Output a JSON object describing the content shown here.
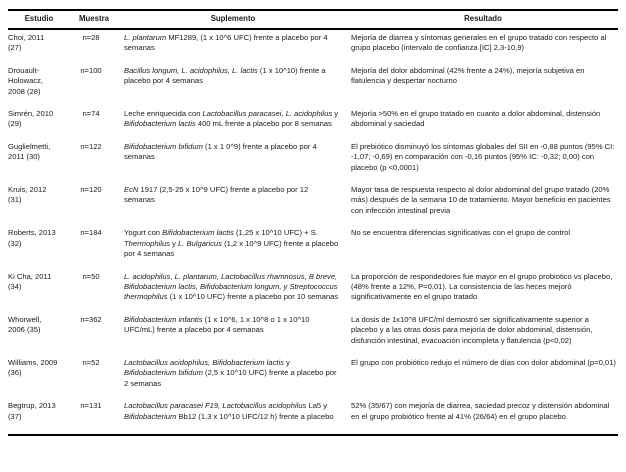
{
  "colors": {
    "text": "#1b1b1b",
    "border": "#000000",
    "background": "#ffffff"
  },
  "table": {
    "headers": [
      "Estudio",
      "Muestra",
      "Suplemento",
      "Resultado"
    ],
    "rows": [
      {
        "estudio": "Choi, 2011\n(27)",
        "muestra": "n=28",
        "suplemento": [
          {
            "t": "L. plantarum",
            "i": true
          },
          {
            "t": " MF1289, (1 x 10^6 UFC) frente a placebo por 4 semanas",
            "i": false
          }
        ],
        "resultado": "Mejoría de diarrea y síntomas generales en el grupo tratado con respecto al grupo placebo (intervalo de confianza [IC] 2,3-10,9)"
      },
      {
        "estudio": "Drouault-\nHolowacz,\n2008 (28)",
        "muestra": "n=100",
        "suplemento": [
          {
            "t": "Bacillus longum, L. acidophilus, L. lactis",
            "i": true
          },
          {
            "t": " (1 x 10^10) frente a placebo por 4 semanas",
            "i": false
          }
        ],
        "resultado": "Mejoría del dolor abdominal (42% frente a 24%), mejoría subjetiva en flatulencia y despertar nocturno"
      },
      {
        "estudio": "Simrén, 2010\n(29)",
        "muestra": "n=74",
        "suplemento": [
          {
            "t": "Leche enriquecida con ",
            "i": false
          },
          {
            "t": "Lactobacillus paracasei, L. acidophilus",
            "i": true
          },
          {
            "t": " y ",
            "i": false
          },
          {
            "t": "Bifidobacterium lactis",
            "i": true
          },
          {
            "t": " 400 mL frente a placebo por 8 semanas",
            "i": false
          }
        ],
        "resultado": "Mejoría >50% en el grupo tratado en cuanto a dolor abdominal, distensión abdominal y saciedad"
      },
      {
        "estudio": "Guglielmetti,\n2011 (30)",
        "muestra": "n=122",
        "suplemento": [
          {
            "t": "Bifidobacterium bifidum",
            "i": true
          },
          {
            "t": " (1 x 1 0^9) frente a placebo por 4 semanas",
            "i": false
          }
        ],
        "resultado": "El prebiótico disminuyó los síntomas globales del SII en -0,88 puntos (95% CI: -1,07; -0,69) en comparación con -0,16 puntos (95% IC: -0,32; 0,00) con placebo (p <0,0001)"
      },
      {
        "estudio": "Kruis, 2012\n(31)",
        "muestra": "n=120",
        "suplemento": [
          {
            "t": "EcN",
            "i": true
          },
          {
            "t": " 1917 (2,5-25 x 10^9 UFC) frente a placebo por 12 semanas",
            "i": false
          }
        ],
        "resultado": "Mayor tasa de respuesta respecto al dolor abdominal del grupo tratado (20% más) después de la semana 10 de tratamiento. Mayor beneficio en pacientes con infección intestinal previa"
      },
      {
        "estudio": "Roberts, 2013\n(32)",
        "muestra": "n=184",
        "suplemento": [
          {
            "t": "Yogurt con ",
            "i": false
          },
          {
            "t": "Bifidobacterium lactis",
            "i": true
          },
          {
            "t": " (1,25 x 10^10 UFC) + S. ",
            "i": false
          },
          {
            "t": "Thermophilus",
            "i": true
          },
          {
            "t": " y ",
            "i": false
          },
          {
            "t": "L. Bulgaricus",
            "i": true
          },
          {
            "t": " (1,2 x 10^9 UFC) frente a placebo por 4 semanas",
            "i": false
          }
        ],
        "resultado": "No se encuentra diferencias significativas con el grupo de control"
      },
      {
        "estudio": "Ki Cha, 2011\n(34)",
        "muestra": "n=50",
        "suplemento": [
          {
            "t": "L. acidophilus, L. plantarum, Lactobacillus rhamnosus, B breve, Bifidobacterium lactis, Bifidobacterium longum, y Streptococcus thermophilus",
            "i": true
          },
          {
            "t": " (1 x 10^10 UFC) frente a placebo por 10 semanas",
            "i": false
          }
        ],
        "resultado": "La proporción de respondedores fue mayor en el grupo probiotico vs placebo, (48% frente a 12%, P=0,01). La consistencia de las heces mejoró significativamente en el grupo tratado"
      },
      {
        "estudio": "Whorwell,\n2006 (35)",
        "muestra": "n=362",
        "suplemento": [
          {
            "t": "Bifidobacterium infantis",
            "i": true
          },
          {
            "t": " (1 x 10^6, 1 x 10^8 o 1 x 10^10 UFC/mL) frente a placebo por 4 semanas",
            "i": false
          }
        ],
        "resultado": "La dosis de 1x10^8 UFC/ml demostró ser significativamente superior a placebo y a las otras dosis para mejoría de dolor abdominal, distensión, disfunción intestinal, evacuación incompleta y flatulencia (p<0,02)"
      },
      {
        "estudio": "Williams, 2009\n(36)",
        "muestra": "n=52",
        "suplemento": [
          {
            "t": "Lactobacillus acidophilus, Bifidobacterium lactis",
            "i": true
          },
          {
            "t": " y ",
            "i": false
          },
          {
            "t": "Bifidobacterium bifidum",
            "i": true
          },
          {
            "t": " (2,5 x 10^10 UFC) frente a placebo por 2 semanas",
            "i": false
          }
        ],
        "resultado": "El grupo con probiótico redujo el número de días con dolor abdominal (p=0,01)"
      },
      {
        "estudio": "Begtrup, 2013\n(37)",
        "muestra": "n=131",
        "suplemento": [
          {
            "t": "Lactobacillus paracasei F19, Lactobacillus acidophilus",
            "i": true
          },
          {
            "t": " La5 y ",
            "i": false
          },
          {
            "t": "Bifidobacterium",
            "i": true
          },
          {
            "t": " Bb12 (1,3 x 10^10 UFC/12 h) frente a placebo",
            "i": false
          }
        ],
        "resultado": "52% (35/67) con mejoría de diarrea, saciedad precoz y distensión abdominal en el grupo probiótico frente al 41% (26/64) en el grupo placebo."
      }
    ]
  }
}
